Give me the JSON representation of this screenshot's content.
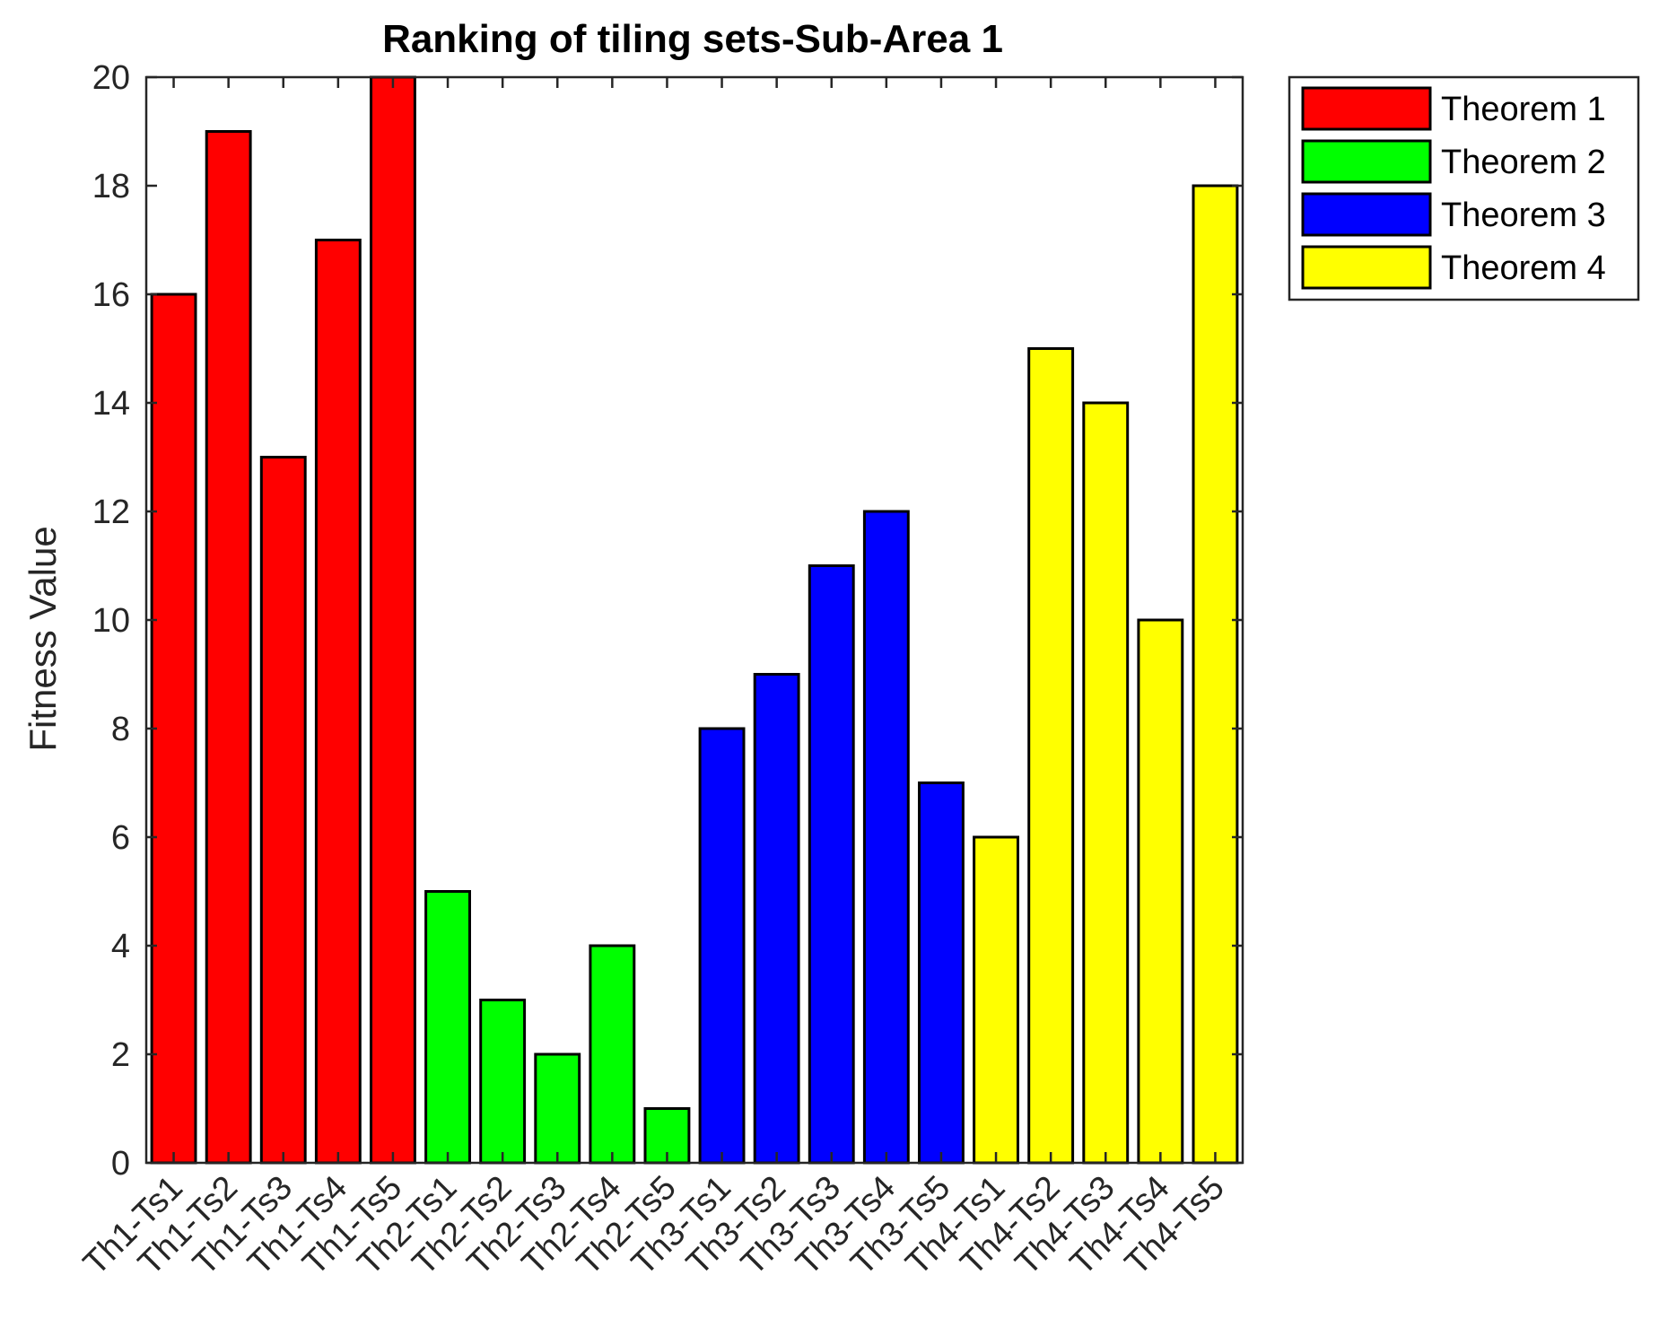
{
  "chart_data": {
    "type": "bar",
    "title": "Ranking of tiling sets-Sub-Area 1",
    "xlabel": "",
    "ylabel": "Fitness Value",
    "ylim": [
      0,
      20
    ],
    "yticks": [
      0,
      2,
      4,
      6,
      8,
      10,
      12,
      14,
      16,
      18,
      20
    ],
    "grid": false,
    "legend_position": "outside-top-right",
    "categories": [
      "Th1-Ts1",
      "Th1-Ts2",
      "Th1-Ts3",
      "Th1-Ts4",
      "Th1-Ts5",
      "Th2-Ts1",
      "Th2-Ts2",
      "Th2-Ts3",
      "Th2-Ts4",
      "Th2-Ts5",
      "Th3-Ts1",
      "Th3-Ts2",
      "Th3-Ts3",
      "Th3-Ts4",
      "Th3-Ts5",
      "Th4-Ts1",
      "Th4-Ts2",
      "Th4-Ts3",
      "Th4-Ts4",
      "Th4-Ts5"
    ],
    "series": [
      {
        "name": "Theorem 1",
        "color": "#ff0000",
        "indices": [
          0,
          1,
          2,
          3,
          4
        ]
      },
      {
        "name": "Theorem 2",
        "color": "#00ff00",
        "indices": [
          5,
          6,
          7,
          8,
          9
        ]
      },
      {
        "name": "Theorem 3",
        "color": "#0000ff",
        "indices": [
          10,
          11,
          12,
          13,
          14
        ]
      },
      {
        "name": "Theorem 4",
        "color": "#ffff00",
        "indices": [
          15,
          16,
          17,
          18,
          19
        ]
      }
    ],
    "values": [
      16,
      19,
      13,
      17,
      20,
      5,
      3,
      2,
      4,
      1,
      8,
      9,
      11,
      12,
      7,
      6,
      15,
      14,
      10,
      18
    ]
  }
}
